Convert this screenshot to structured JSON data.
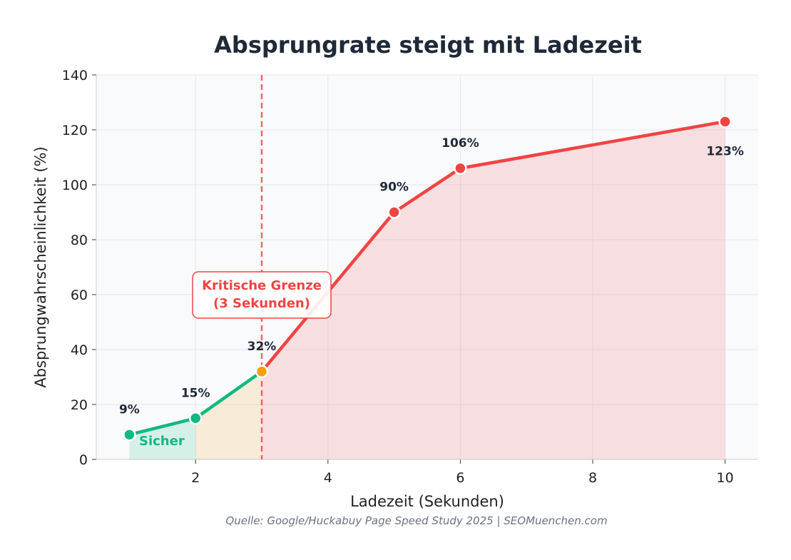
{
  "chart_data": {
    "type": "line",
    "title": "Absprungrate steigt mit Ladezeit",
    "xlabel": "Ladezeit (Sekunden)",
    "ylabel": "Absprungwahrscheinlichkeit (%)",
    "source": "Quelle: Google/Huckabuy Page Speed Study 2025 | SEOMuenchen.com",
    "xlim": [
      0.5,
      10.5
    ],
    "ylim": [
      0,
      140
    ],
    "xticks": [
      2,
      4,
      6,
      8,
      10
    ],
    "yticks": [
      0,
      20,
      40,
      60,
      80,
      100,
      120,
      140
    ],
    "grid": true,
    "x": [
      1,
      2,
      3,
      5,
      6,
      10
    ],
    "y": [
      9,
      15,
      32,
      90,
      106,
      123
    ],
    "data_labels": [
      "9%",
      "15%",
      "32%",
      "90%",
      "106%",
      "123%"
    ],
    "threshold": {
      "x": 3,
      "label_line1": "Kritische Grenze",
      "label_line2": "(3 Sekunden)"
    },
    "zone_label": "Sicher",
    "colors": {
      "safe": "#10b981",
      "warning": "#f59e0b",
      "critical": "#ef4444",
      "text": "#1f2937",
      "plot_bg": "#f8fafc"
    }
  }
}
